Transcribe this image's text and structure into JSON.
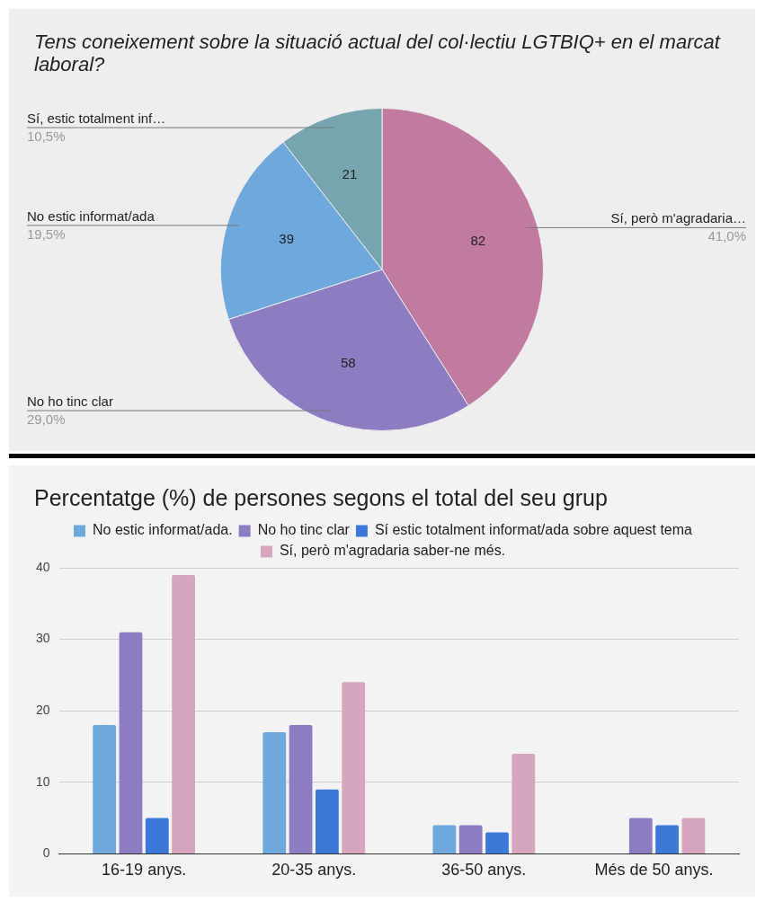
{
  "chart_data": [
    {
      "type": "pie",
      "title": "Tens coneixement sobre la situació actual del col·lectiu LGTBIQ+ en el marcat laboral?",
      "categories": [
        "Sí, però m'agradaria…",
        "No ho tinc clar",
        "No estic informat/ada",
        "Sí, estic totalment inf…"
      ],
      "values": [
        41,
        29,
        19.5,
        10.5
      ],
      "colors": [
        "#c27ba0",
        "#8e7cc3",
        "#6fa8dc",
        "#76a5af"
      ],
      "value_labels": [
        "41,0%",
        "29,0%",
        "19,5%",
        "10,5%"
      ],
      "annotations": [
        {
          "text": "82",
          "x": "Sí, però m'agradaria…"
        },
        {
          "text": "58",
          "x": "No ho tinc clar"
        },
        {
          "text": "39",
          "x": "No estic informat/ada"
        },
        {
          "text": "21",
          "x": "Sí, estic totalment inf…"
        }
      ]
    },
    {
      "type": "bar",
      "title": "Percentatge (%) de persones segons el total del seu grup",
      "categories": [
        "16-19 anys.",
        "20-35 anys.",
        "36-50 anys.",
        "Més de 50 anys."
      ],
      "series": [
        {
          "name": "No estic informat/ada.",
          "color": "#6fa8dc",
          "values": [
            18,
            17,
            4,
            0
          ]
        },
        {
          "name": "No ho tinc clar",
          "color": "#8e7cc3",
          "values": [
            31,
            18,
            4,
            5
          ]
        },
        {
          "name": "Sí estic totalment informat/ada sobre aquest tema",
          "color": "#3c78d8",
          "values": [
            5,
            9,
            3,
            4
          ]
        },
        {
          "name": "Sí, però m'agradaria saber-ne més.",
          "color": "#d5a6bd",
          "values": [
            39,
            24,
            14,
            5
          ]
        }
      ],
      "ylim": [
        0,
        40
      ],
      "yticks": [
        0,
        10,
        20,
        30,
        40
      ],
      "grid": "y",
      "legend": "top"
    }
  ]
}
